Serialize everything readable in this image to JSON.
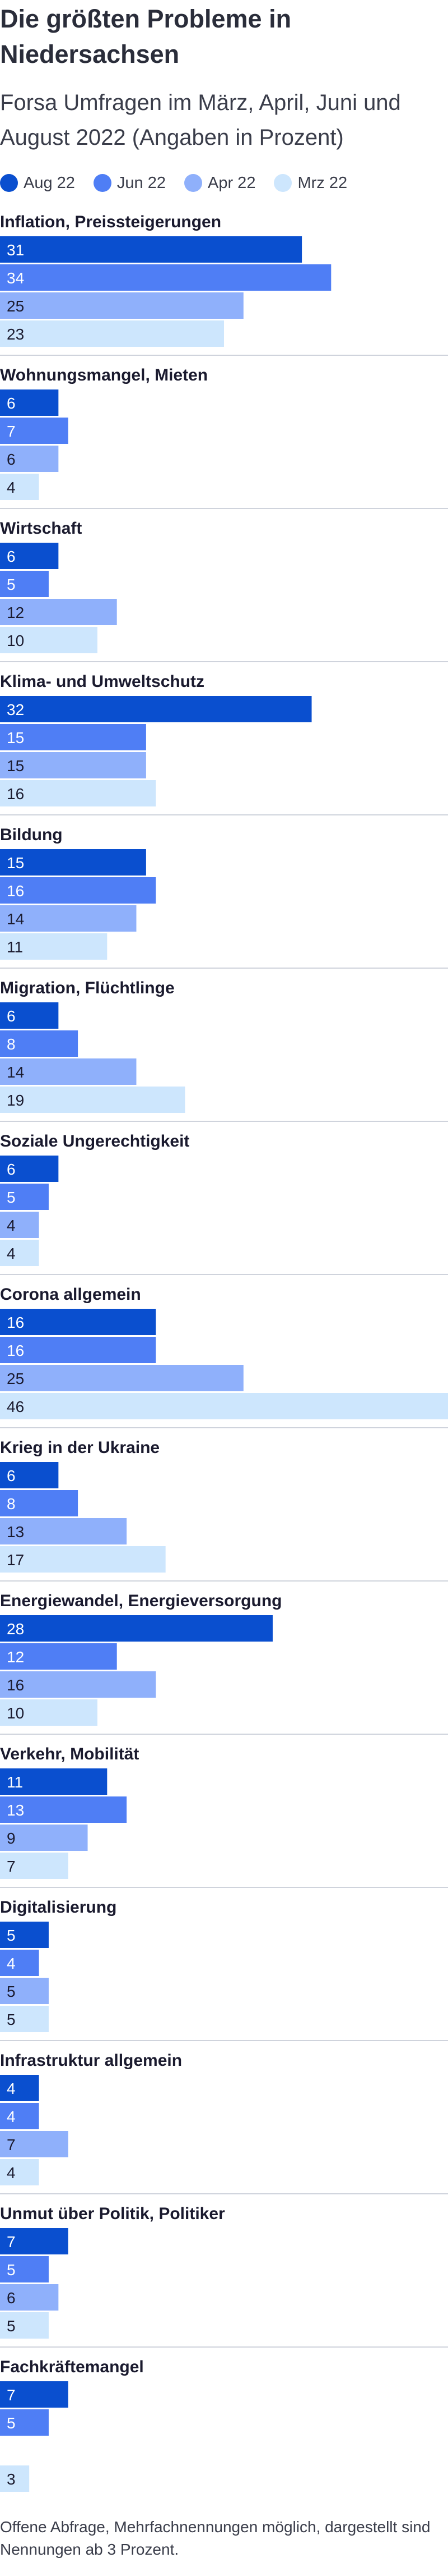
{
  "title": "Die größten Probleme in Niedersachsen",
  "subtitle": "Forsa Umfragen im März, April, Juni und August 2022 (Angaben in Prozent)",
  "footnote": "Offene Abfrage, Mehrfachnennungen möglich, dargestellt sind Nennungen ab 3 Prozent.",
  "colors": {
    "aug22": "#0a4fcf",
    "jun22": "#4f7ef5",
    "apr22": "#8fb0fb",
    "mrz22": "#cde6fd",
    "label_dark_bg": "#ffffff",
    "label_light_bg": "#1a1a2e",
    "divider": "#cfd3dc"
  },
  "chart_data": {
    "type": "bar",
    "orientation": "horizontal",
    "xlim": [
      0,
      46
    ],
    "grid": false,
    "legend_position": "top-left",
    "series": [
      {
        "name": "Aug 22"
      },
      {
        "name": "Jun 22"
      },
      {
        "name": "Apr 22"
      },
      {
        "name": "Mrz 22"
      }
    ],
    "categories": [
      {
        "label": "Inflation, Preissteigerungen",
        "values": [
          31,
          34,
          25,
          23
        ]
      },
      {
        "label": "Wohnungsmangel, Mieten",
        "values": [
          6,
          7,
          6,
          4
        ]
      },
      {
        "label": "Wirtschaft",
        "values": [
          6,
          5,
          12,
          10
        ]
      },
      {
        "label": "Klima- und Umweltschutz",
        "values": [
          32,
          15,
          15,
          16
        ]
      },
      {
        "label": "Bildung",
        "values": [
          15,
          16,
          14,
          11
        ]
      },
      {
        "label": "Migration, Flüchtlinge",
        "values": [
          6,
          8,
          14,
          19
        ]
      },
      {
        "label": "Soziale Ungerechtigkeit",
        "values": [
          6,
          5,
          4,
          4
        ]
      },
      {
        "label": "Corona allgemein",
        "values": [
          16,
          16,
          25,
          46
        ]
      },
      {
        "label": "Krieg in der Ukraine",
        "values": [
          6,
          8,
          13,
          17
        ]
      },
      {
        "label": "Energiewandel, Energieversorgung",
        "values": [
          28,
          12,
          16,
          10
        ]
      },
      {
        "label": "Verkehr, Mobilität",
        "values": [
          11,
          13,
          9,
          7
        ]
      },
      {
        "label": "Digitalisierung",
        "values": [
          5,
          4,
          5,
          5
        ]
      },
      {
        "label": "Infrastruktur allgemein",
        "values": [
          4,
          4,
          7,
          4
        ]
      },
      {
        "label": "Unmut über Politik, Politiker",
        "values": [
          7,
          5,
          6,
          5
        ]
      },
      {
        "label": "Fachkräftemangel",
        "values": [
          7,
          5,
          null,
          3
        ]
      }
    ]
  }
}
